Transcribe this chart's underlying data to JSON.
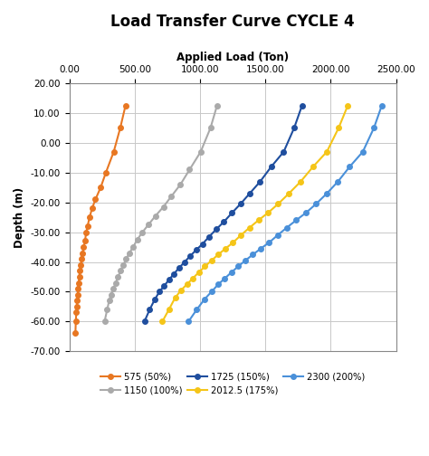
{
  "title": "Load Transfer Curve CYCLE 4",
  "xlabel": "Applied Load (Ton)",
  "ylabel": "Depth (m)",
  "xlim": [
    0,
    2500
  ],
  "ylim": [
    -70,
    20
  ],
  "xticks": [
    0,
    500,
    1000,
    1500,
    2000,
    2500
  ],
  "xtick_labels": [
    "0.00",
    "500.00",
    "1000.00",
    "1500.00",
    "2000.00",
    "2500.00"
  ],
  "yticks": [
    20,
    10,
    0,
    -10,
    -20,
    -30,
    -40,
    -50,
    -60,
    -70
  ],
  "ytick_labels": [
    "20.00",
    "10.00",
    "0.00",
    "-10.00",
    "-20.00",
    "-30.00",
    "-40.00",
    "-50.00",
    "-60.00",
    "-70.00"
  ],
  "series": [
    {
      "label": "575 (50%)",
      "color": "#E87722",
      "load": [
        430,
        390,
        340,
        280,
        240,
        200,
        175,
        155,
        140,
        130,
        120,
        110,
        103,
        95,
        88,
        82,
        76,
        72,
        68,
        64,
        60,
        57,
        54,
        50,
        47
      ],
      "depth": [
        12.5,
        5,
        -3,
        -10,
        -15,
        -19,
        -22,
        -25,
        -28,
        -30,
        -33,
        -35,
        -37,
        -39,
        -41,
        -43,
        -45,
        -47,
        -49,
        -51,
        -53,
        -55,
        -57,
        -60,
        -64
      ]
    },
    {
      "label": "1150 (100%)",
      "color": "#AAAAAA",
      "load": [
        1130,
        1080,
        1005,
        920,
        850,
        780,
        720,
        660,
        605,
        560,
        520,
        488,
        460,
        435,
        413,
        392,
        373,
        355,
        338,
        320,
        305,
        290,
        270
      ],
      "depth": [
        12.5,
        5,
        -3,
        -9,
        -14,
        -18,
        -21.5,
        -24.5,
        -27.5,
        -30,
        -32.5,
        -35,
        -37,
        -39,
        -41,
        -43,
        -45,
        -47,
        -49,
        -51,
        -53,
        -56,
        -60
      ]
    },
    {
      "label": "1725 (150%)",
      "color": "#1F4E9E",
      "load": [
        1780,
        1720,
        1640,
        1545,
        1460,
        1380,
        1310,
        1245,
        1183,
        1125,
        1070,
        1018,
        970,
        925,
        882,
        840,
        800,
        763,
        726,
        690,
        655,
        615,
        575
      ],
      "depth": [
        12.5,
        5,
        -3,
        -8,
        -13,
        -17,
        -20.5,
        -23.5,
        -26.5,
        -29,
        -31.5,
        -34,
        -36,
        -38,
        -40,
        -42,
        -44,
        -46,
        -48,
        -50,
        -52.5,
        -56,
        -60
      ]
    },
    {
      "label": "2012.5 (175%)",
      "color": "#F5C518",
      "load": [
        2130,
        2060,
        1970,
        1865,
        1770,
        1680,
        1598,
        1520,
        1447,
        1378,
        1313,
        1252,
        1195,
        1140,
        1088,
        1038,
        990,
        945,
        900,
        855,
        810,
        762,
        712
      ],
      "depth": [
        12.5,
        5,
        -3,
        -8,
        -13,
        -17,
        -20.5,
        -23.5,
        -26,
        -28.5,
        -31,
        -33.5,
        -35.5,
        -37.5,
        -39.5,
        -41.5,
        -43.5,
        -45.5,
        -47.5,
        -49.5,
        -52,
        -56,
        -60
      ]
    },
    {
      "label": "2300 (200%)",
      "color": "#4A90D9",
      "load": [
        2390,
        2330,
        2245,
        2145,
        2055,
        1970,
        1888,
        1810,
        1735,
        1663,
        1594,
        1528,
        1465,
        1405,
        1347,
        1292,
        1240,
        1190,
        1140,
        1088,
        1035,
        975,
        912
      ],
      "depth": [
        12.5,
        5,
        -3,
        -8,
        -13,
        -17,
        -20.5,
        -23.5,
        -26,
        -28.5,
        -31,
        -33.5,
        -35.5,
        -37.5,
        -39.5,
        -41.5,
        -43.5,
        -45.5,
        -47.5,
        -50,
        -52.5,
        -56,
        -60
      ]
    }
  ],
  "background_color": "#FFFFFF",
  "grid_color": "#C8C8C8",
  "title_fontsize": 12,
  "label_fontsize": 8.5,
  "tick_fontsize": 7.5
}
